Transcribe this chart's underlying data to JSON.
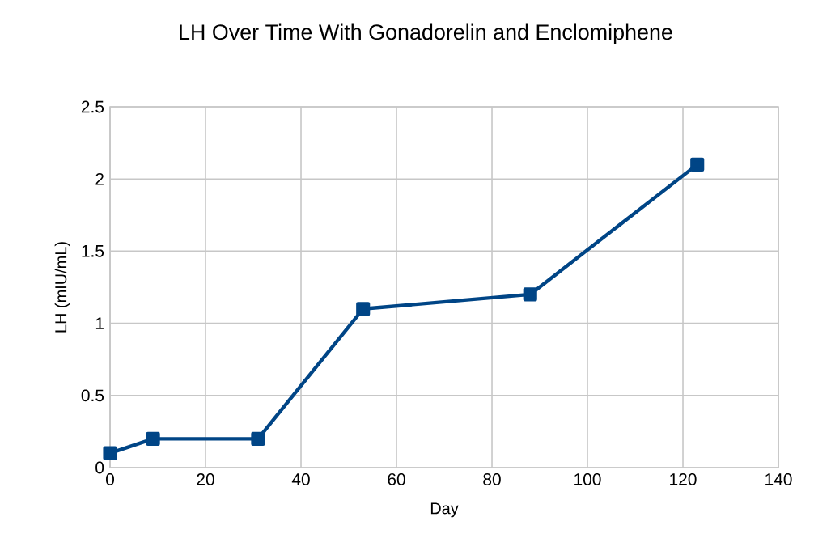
{
  "chart_data": {
    "type": "line",
    "title": "LH Over Time With Gonadorelin and Enclomiphene",
    "xlabel": "Day",
    "ylabel": "LH (mIU/mL)",
    "x": [
      0,
      9,
      31,
      53,
      88,
      123
    ],
    "series": [
      {
        "color": "#004586",
        "values": [
          0.1,
          0.2,
          0.2,
          1.1,
          1.2,
          2.1
        ]
      }
    ],
    "xlim": [
      0,
      140
    ],
    "xticks": [
      0,
      20,
      40,
      60,
      80,
      100,
      120,
      140
    ],
    "ylim": [
      0,
      2.5
    ],
    "yticks": [
      0,
      0.5,
      1,
      1.5,
      2,
      2.5
    ],
    "grid": true,
    "marker": "square",
    "line_style": "solid"
  }
}
